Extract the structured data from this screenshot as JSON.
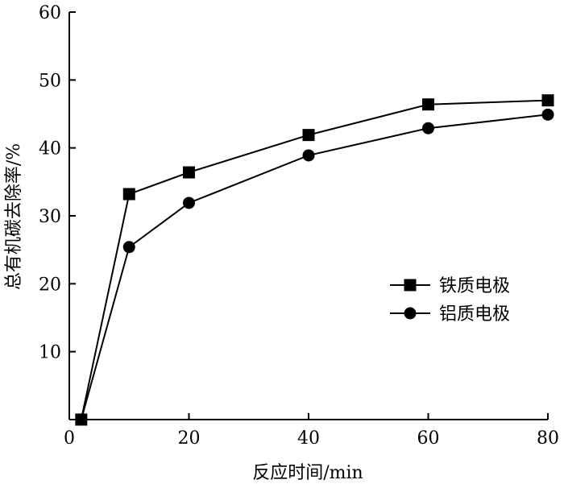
{
  "chart_data": {
    "type": "line",
    "title": "",
    "xlabel": "反应时间/min",
    "ylabel": "总有机碳去除率/%",
    "xlim": [
      0,
      80
    ],
    "ylim": [
      0,
      60
    ],
    "xticks": [
      0,
      20,
      40,
      60,
      80
    ],
    "yticks": [
      10,
      20,
      30,
      40,
      50,
      60
    ],
    "x_tick_labels": [
      "0",
      "20",
      "40",
      "60",
      "80"
    ],
    "y_tick_labels": [
      "10",
      "20",
      "30",
      "40",
      "50",
      "60"
    ],
    "grid": false,
    "legend_position": "right",
    "series": [
      {
        "name": "铁质电极",
        "marker": "square",
        "color": "#000000",
        "x": [
          2,
          10,
          20,
          40,
          60,
          80
        ],
        "y": [
          0,
          33.2,
          36.4,
          41.9,
          46.4,
          47.0
        ]
      },
      {
        "name": "铝质电极",
        "marker": "circle",
        "color": "#000000",
        "x": [
          2,
          10,
          20,
          40,
          60,
          80
        ],
        "y": [
          0,
          25.4,
          31.9,
          38.9,
          42.9,
          44.9
        ]
      }
    ]
  }
}
